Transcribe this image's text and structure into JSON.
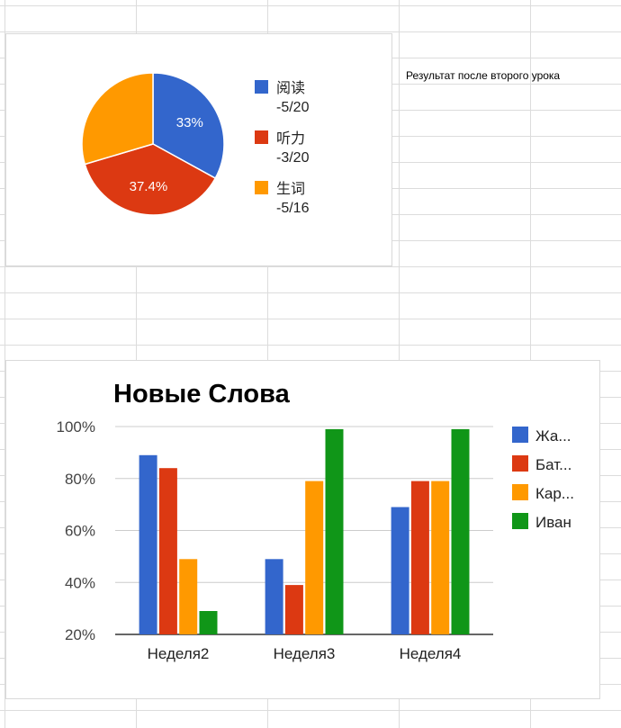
{
  "sheet": {
    "note_text": "Результат после второго урока"
  },
  "chart_data": [
    {
      "type": "pie",
      "title": "",
      "slices": [
        {
          "label": "阅读",
          "sublabel": "-5/20",
          "value": 33.0,
          "display": "33%",
          "color": "#3366CC"
        },
        {
          "label": "听力",
          "sublabel": "-3/20",
          "value": 37.4,
          "display": "37.4%",
          "color": "#DC3912"
        },
        {
          "label": "生词",
          "sublabel": "-5/16",
          "value": 29.6,
          "display": "",
          "color": "#FF9900"
        }
      ],
      "legend_position": "right"
    },
    {
      "type": "bar",
      "title": "Новые Слова",
      "categories": [
        "Неделя2",
        "Неделя3",
        "Неделя4"
      ],
      "series": [
        {
          "name": "Жа...",
          "color": "#3366CC",
          "values": [
            89,
            49,
            69
          ]
        },
        {
          "name": "Бат...",
          "color": "#DC3912",
          "values": [
            84,
            39,
            79
          ]
        },
        {
          "name": "Кар...",
          "color": "#FF9900",
          "values": [
            49,
            79,
            79
          ]
        },
        {
          "name": "Иван",
          "color": "#109618",
          "values": [
            29,
            99,
            99
          ]
        }
      ],
      "ylim": [
        20,
        100
      ],
      "yticks": [
        "100%",
        "80%",
        "60%",
        "40%",
        "20%"
      ],
      "ytick_values": [
        100,
        80,
        60,
        40,
        20
      ],
      "grid": true,
      "legend_position": "right"
    }
  ]
}
